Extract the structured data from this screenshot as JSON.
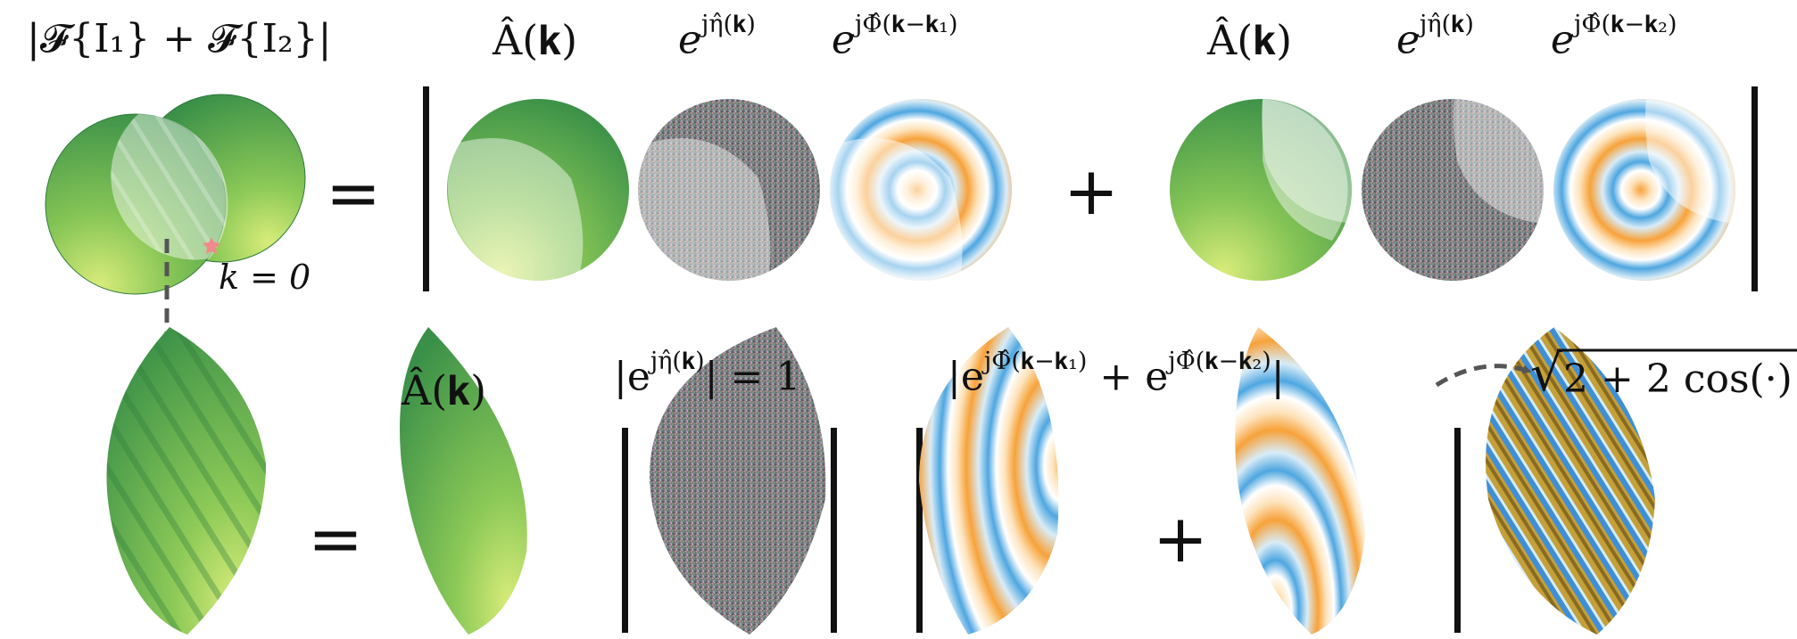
{
  "labels": {
    "fourier_sum": "|𝓕{I₁} + 𝓕{I₂}|",
    "k_zero": "k = 0",
    "amp_1": "Â(𝐤)",
    "phase_noise_1_base": "e",
    "phase_noise_1_exp": "jη̂(𝐤)",
    "phase_ring_1_base": "e",
    "phase_ring_1_exp": "jΦ̂(𝐤−𝐤₁)",
    "amp_2": "Â(𝐤)",
    "phase_noise_2_base": "e",
    "phase_noise_2_exp": "jη̂(𝐤)",
    "phase_ring_2_base": "e",
    "phase_ring_2_exp": "jΦ̂(𝐤−𝐤₂)",
    "amp_overlap": "Â(𝐤)",
    "noise_mod_lhs": "|e",
    "noise_mod_exp": "jη̂(𝐤)",
    "noise_mod_rhs": "| = 1",
    "sum_mod_a": "|e",
    "sum_mod_exp1": "jΦ̂(𝐤−𝐤₁)",
    "sum_mod_b": " + e",
    "sum_mod_exp2": "jΦ̂(𝐤−𝐤₂)",
    "sum_mod_c": "|",
    "sqrt_symbol": "√",
    "sqrt_expr": "2 + 2 cos(·)"
  },
  "operators": {
    "equals": "=",
    "plus": "+"
  },
  "colors": {
    "green_dark": "#3f9a4c",
    "green_light": "#a8d460",
    "overlay_white": "#ffffff",
    "ring_orange": "#f4a640",
    "ring_blue": "#4ea6e0",
    "stripe_blue": "#3f8fd6",
    "stripe_gold": "#b8952f",
    "arrow_gray": "#555555",
    "marker_red": "#f08a8a",
    "bar_black": "#111111"
  }
}
